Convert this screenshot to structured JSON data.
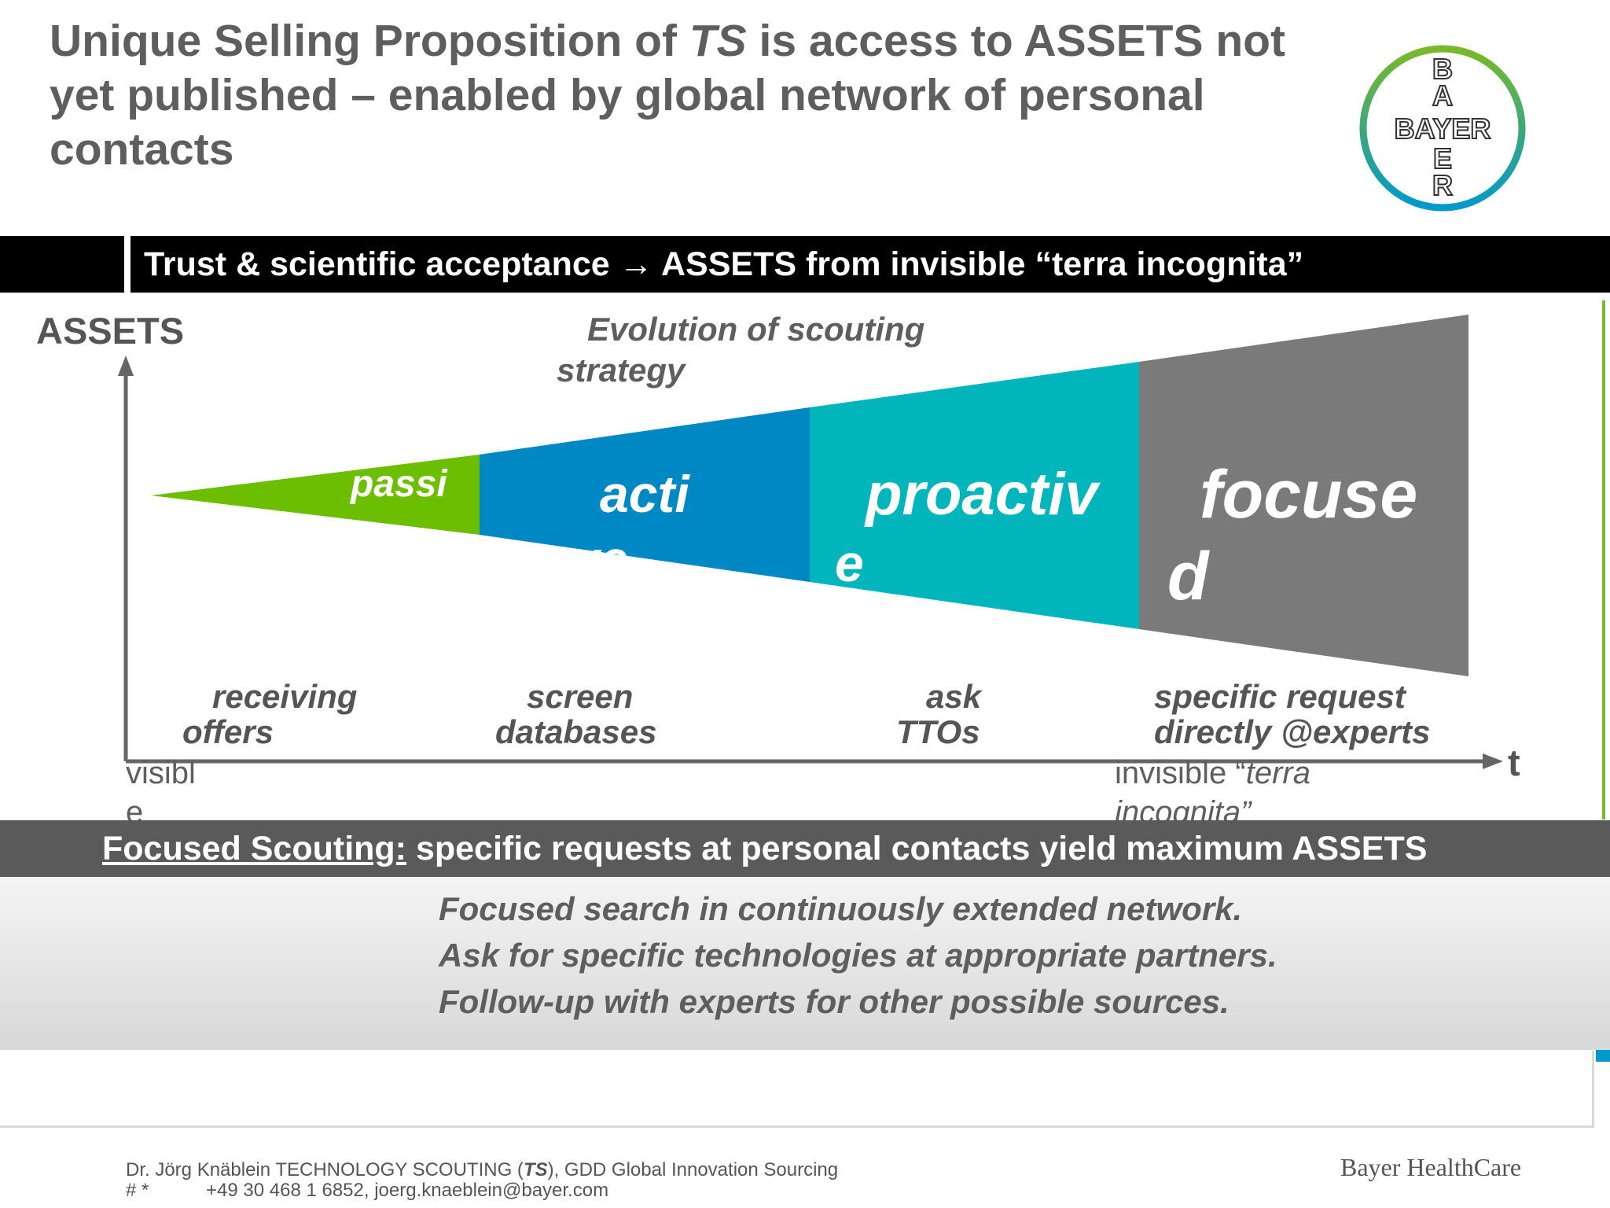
{
  "title": {
    "part1": "Unique Selling Proposition of ",
    "ts": "TS",
    "part2": " is access to ASSETS not yet published – enabled by global network of personal contacts"
  },
  "logo": {
    "vertical": [
      "B",
      "A",
      "Y",
      "E",
      "R"
    ],
    "horizontal": "BAYER",
    "ring_color_top": "#7ab929",
    "ring_color_bottom": "#0099cc"
  },
  "band": {
    "text": "Trust & scientific acceptance → ASSETS from invisible “terra incognita”"
  },
  "diagram": {
    "y_axis_label": "ASSETS",
    "x_axis_label": "t",
    "evolution_label_1": "Evolution of scouting",
    "evolution_label_2": "strategy",
    "stages": [
      {
        "line1": "passi",
        "line2": "",
        "color": "#6bbf00"
      },
      {
        "line1": "acti",
        "line2": "ve",
        "color": "#0088c4"
      },
      {
        "line1": "proactiv",
        "line2": "e",
        "color": "#00b5bc"
      },
      {
        "line1": "focuse",
        "line2": "d",
        "color": "#7a7a7a"
      }
    ],
    "activities": [
      {
        "line1": "receiving",
        "line2": "offers"
      },
      {
        "line1": "screen",
        "line2": "databases"
      },
      {
        "line1": "ask",
        "line2": "TTOs"
      },
      {
        "line1": "specific request",
        "line2": "directly @experts"
      }
    ],
    "axis_start_line1": "visibl",
    "axis_start_line2": "e",
    "axis_end_line1_a": "invisible “",
    "axis_end_line1_b": "terra",
    "axis_end_line2": "incognita”"
  },
  "focused": {
    "label": "Focused Scouting:",
    "text": " specific requests at personal contacts yield maximum ASSETS"
  },
  "bullets": [
    "Focused search in continuously extended network.",
    "Ask for specific technologies at appropriate partners.",
    "Follow-up with experts for other possible sources."
  ],
  "footer": {
    "line1_a": "Dr. Jörg Knäblein TECHNOLOGY SCOUTING (",
    "line1_ts": "TS",
    "line1_b": "), GDD Global Innovation Sourcing",
    "line2_hash": "# *",
    "line2_contact": "+49 30 468 1 6852, joerg.knaeblein@bayer.com",
    "brand": "Bayer HealthCare"
  }
}
